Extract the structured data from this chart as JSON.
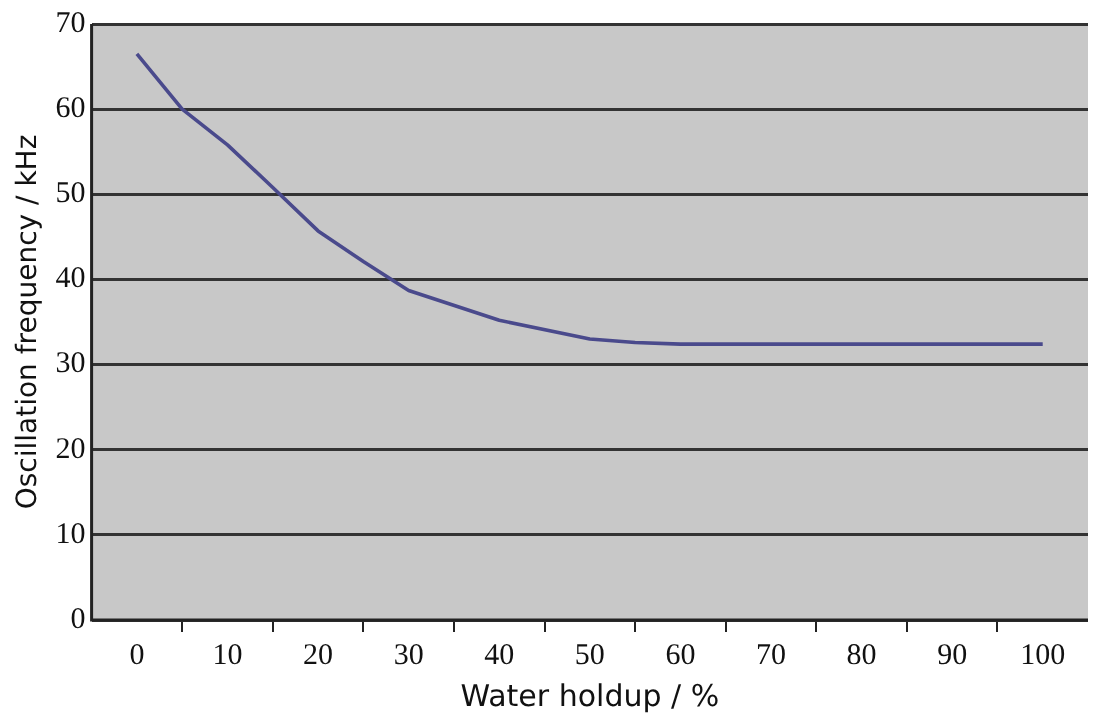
{
  "chart_data": {
    "type": "line",
    "xlabel": "Water holdup / %",
    "ylabel": "Oscillation frequency / kHz",
    "x": [
      0,
      5,
      10,
      15,
      20,
      25,
      30,
      40,
      50,
      55,
      60,
      70,
      80,
      90,
      100
    ],
    "series": [
      {
        "color": "#4a4a8c",
        "values": [
          66.5,
          60,
          55.8,
          50.8,
          45.7,
          42.1,
          38.7,
          35.2,
          33,
          32.6,
          32.4,
          32.4,
          32.4,
          32.4,
          32.4
        ]
      }
    ],
    "xlim": [
      -5,
      105
    ],
    "xticks": [
      0,
      {
        "value": 5,
        "label": null
      },
      10,
      {
        "value": 15,
        "label": null
      },
      20,
      {
        "value": 25,
        "label": null
      },
      30,
      {
        "value": 35,
        "label": null
      },
      40,
      {
        "value": 45,
        "label": null
      },
      50,
      {
        "value": 55,
        "label": null
      },
      60,
      {
        "value": 65,
        "label": null
      },
      70,
      {
        "value": 75,
        "label": null
      },
      80,
      {
        "value": 85,
        "label": null
      },
      90,
      {
        "value": 95,
        "label": null
      },
      100
    ],
    "ylim": [
      0,
      70
    ],
    "yticks": [
      0,
      10,
      20,
      30,
      40,
      50,
      60,
      70
    ],
    "grid": "y",
    "marker": "none",
    "line_style": "solid",
    "legend": false
  }
}
